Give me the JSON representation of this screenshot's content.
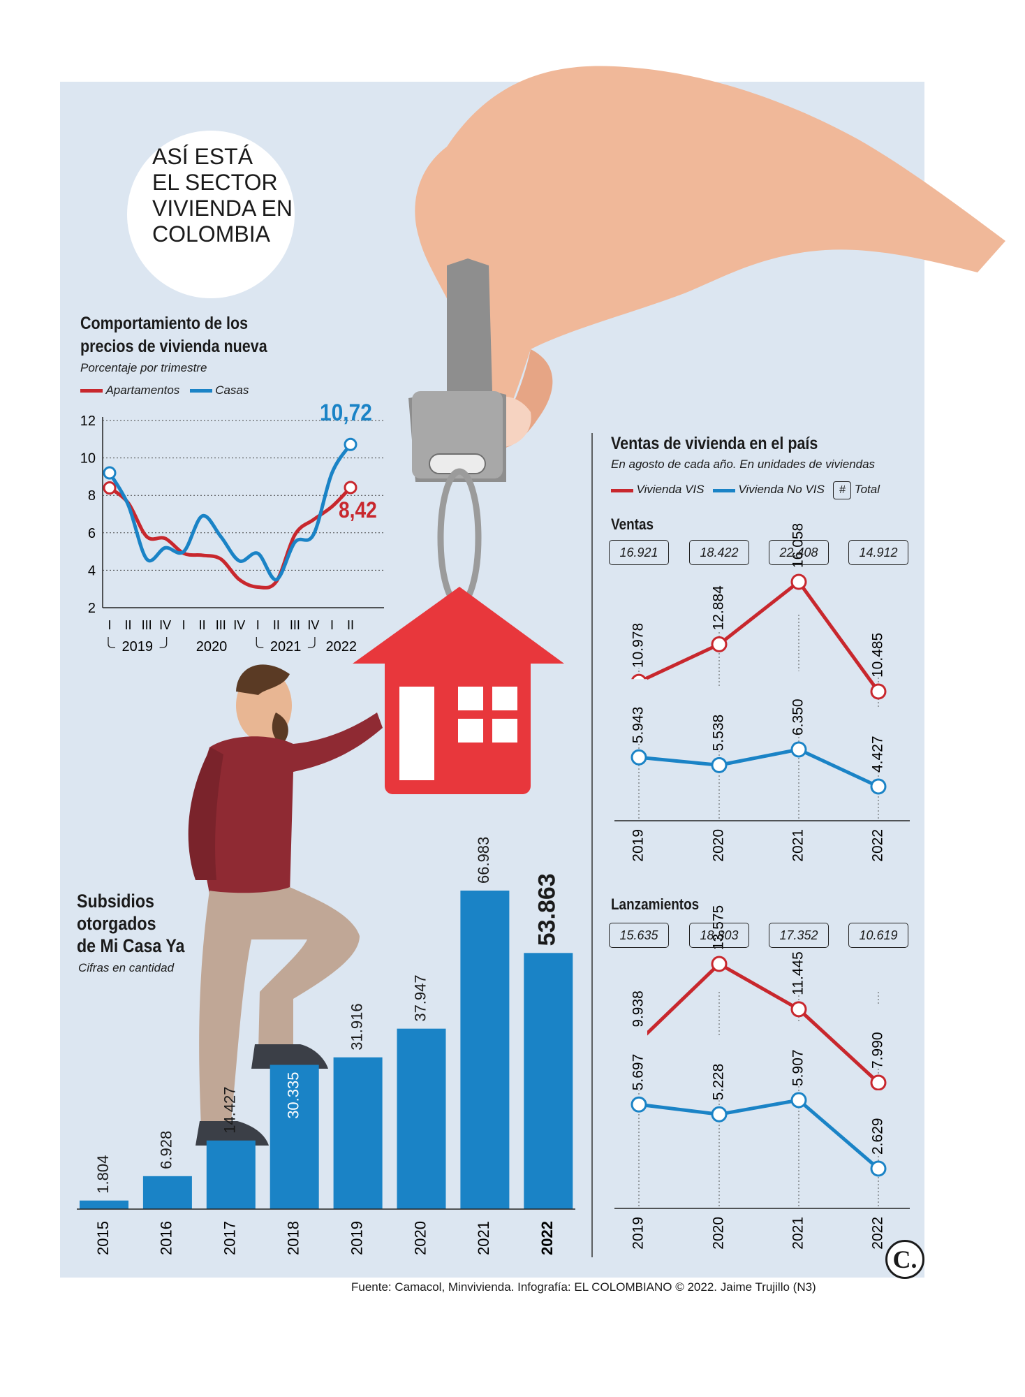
{
  "header": {
    "lines": [
      "ASÍ ESTÁ",
      "EL SECTOR",
      "VIVIENDA EN",
      "COLOMBIA"
    ]
  },
  "prices": {
    "title_line1": "Comportamiento de los",
    "title_line2": "precios de vivienda nueva",
    "subtitle": "Porcentaje por trimestre",
    "legend": [
      {
        "name": "Apartamentos",
        "color": "#c8272d"
      },
      {
        "name": "Casas",
        "color": "#1a83c6"
      }
    ],
    "last_casas_label": "10,72",
    "last_apto_label": "8,42"
  },
  "ventas": {
    "title": "Ventas de vivienda en el país",
    "subtitle": "En agosto de cada año. En unidades de viviendas",
    "legend": [
      {
        "name": "Vivienda VIS",
        "color": "#c8272d"
      },
      {
        "name": "Vivienda No VIS",
        "color": "#1a83c6"
      },
      {
        "name": "Total",
        "symbol": "#"
      }
    ],
    "section1": "Ventas",
    "section2": "Lanzamientos"
  },
  "subsidios": {
    "title_line1": "Subsidios",
    "title_line2": "otorgados",
    "title_line3": "de Mi Casa Ya",
    "subtitle": "Cifras en cantidad"
  },
  "source": "Fuente: Camacol, Minvivienda. Infografía: EL COLOMBIANO © 2022. Jaime Trujillo (N3)",
  "logo": "C.",
  "chart_data": [
    {
      "type": "line",
      "title": "Comportamiento de los precios de vivienda nueva",
      "subtitle": "Porcentaje por trimestre",
      "x": [
        "I",
        "II",
        "III",
        "IV",
        "I",
        "II",
        "III",
        "IV",
        "I",
        "II",
        "III",
        "IV",
        "I",
        "II"
      ],
      "year_groups": [
        {
          "label": "2019",
          "start": 0,
          "end": 3,
          "bracket": true
        },
        {
          "label": "2020",
          "start": 4,
          "end": 7,
          "bracket": false
        },
        {
          "label": "2021",
          "start": 8,
          "end": 11,
          "bracket": true
        },
        {
          "label": "2022",
          "start": 12,
          "end": 13,
          "bracket": false
        }
      ],
      "ylim": [
        2,
        12
      ],
      "yticks": [
        2,
        4,
        6,
        8,
        10,
        12
      ],
      "series": [
        {
          "name": "Apartamentos",
          "color": "#c8272d",
          "values": [
            8.4,
            7.6,
            5.8,
            5.7,
            4.9,
            4.8,
            4.6,
            3.5,
            3.1,
            3.4,
            5.9,
            6.7,
            7.4,
            8.42
          ]
        },
        {
          "name": "Casas",
          "color": "#1a83c6",
          "values": [
            9.2,
            7.5,
            4.6,
            5.2,
            5.0,
            6.9,
            5.8,
            4.5,
            4.9,
            3.5,
            5.5,
            5.9,
            9.2,
            10.72
          ]
        }
      ]
    },
    {
      "type": "bar",
      "title": "Subsidios otorgados de Mi Casa Ya",
      "subtitle": "Cifras en cantidad",
      "categories": [
        "2015",
        "2016",
        "2017",
        "2018",
        "2019",
        "2020",
        "2021",
        "2022"
      ],
      "values": [
        1804,
        6928,
        14427,
        30335,
        31916,
        37947,
        66983,
        53863
      ],
      "labels": [
        "1.804",
        "6.928",
        "14.427",
        "30.335",
        "31.916",
        "37.947",
        "66.983",
        "53.863"
      ],
      "color": "#1a83c6",
      "ylim": [
        0,
        66983
      ]
    },
    {
      "type": "line",
      "title": "Ventas",
      "categories": [
        "2019",
        "2020",
        "2021",
        "2022"
      ],
      "totals": [
        "16.921",
        "18.422",
        "22.408",
        "14.912"
      ],
      "series": [
        {
          "name": "Vivienda VIS",
          "color": "#c8272d",
          "values": [
            10978,
            12884,
            16058,
            10485
          ],
          "labels": [
            "10.978",
            "12.884",
            "16.058",
            "10.485"
          ]
        },
        {
          "name": "Vivienda No VIS",
          "color": "#1a83c6",
          "values": [
            5943,
            5538,
            6350,
            4427
          ],
          "labels": [
            "5.943",
            "5.538",
            "6.350",
            "4.427"
          ]
        }
      ]
    },
    {
      "type": "line",
      "title": "Lanzamientos",
      "categories": [
        "2019",
        "2020",
        "2021",
        "2022"
      ],
      "totals": [
        "15.635",
        "18.803",
        "17.352",
        "10.619"
      ],
      "series": [
        {
          "name": "Vivienda VIS",
          "color": "#c8272d",
          "values": [
            9938,
            13575,
            11445,
            7990
          ],
          "labels": [
            "9.938",
            "13.575",
            "11.445",
            "7.990"
          ]
        },
        {
          "name": "Vivienda No VIS",
          "color": "#1a83c6",
          "values": [
            5697,
            5228,
            5907,
            2629
          ],
          "labels": [
            "5.697",
            "5.228",
            "5.907",
            "2.629"
          ]
        }
      ]
    }
  ]
}
